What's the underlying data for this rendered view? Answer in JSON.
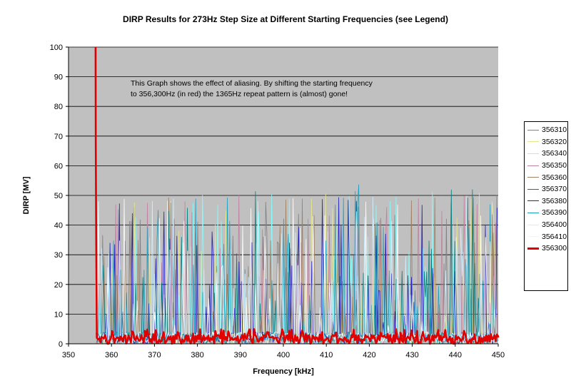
{
  "chart_data": {
    "type": "line",
    "title": "DIRP Results for 273Hz Step Size at Different Starting Frequencies (see Legend)",
    "xlabel": "Frequency [kHz]",
    "ylabel": "DIRP [MV]",
    "xlim": [
      350,
      450
    ],
    "ylim": [
      0,
      100
    ],
    "x_ticks": [
      "350",
      "360",
      "370",
      "380",
      "390",
      "400",
      "410",
      "420",
      "430",
      "440",
      "450"
    ],
    "y_ticks": [
      "0",
      "10",
      "20",
      "30",
      "40",
      "50",
      "60",
      "70",
      "80",
      "90",
      "100"
    ],
    "grid": "horizontal",
    "plot_background": "#c0c0c0",
    "legend_placement": "right",
    "annotation": [
      "This Graph shows the effect of aliasing. By shifting the starting frequency",
      "to 356,300Hz (in red) the 1365Hz repeat pattern is (almost) gone!"
    ],
    "series": [
      {
        "name": "356310",
        "color": "#808080",
        "start_khz": 356.31,
        "step_hz": 273,
        "approx_peak_range": [
          0,
          52
        ]
      },
      {
        "name": "356320",
        "color": "#e6e68c",
        "start_khz": 356.32,
        "step_hz": 273,
        "approx_peak_range": [
          0,
          52
        ]
      },
      {
        "name": "356340",
        "color": "#80ffff",
        "start_khz": 356.34,
        "step_hz": 273,
        "approx_peak_range": [
          0,
          52
        ]
      },
      {
        "name": "356350",
        "color": "#c080a0",
        "start_khz": 356.35,
        "step_hz": 273,
        "approx_peak_range": [
          0,
          50
        ]
      },
      {
        "name": "356360",
        "color": "#a08060",
        "start_khz": 356.36,
        "step_hz": 273,
        "approx_peak_range": [
          0,
          50
        ]
      },
      {
        "name": "356370",
        "color": "#008080",
        "start_khz": 356.37,
        "step_hz": 273,
        "approx_peak_range": [
          0,
          52
        ]
      },
      {
        "name": "356380",
        "color": "#2020c0",
        "start_khz": 356.38,
        "step_hz": 273,
        "approx_peak_range": [
          0,
          50
        ]
      },
      {
        "name": "356390",
        "color": "#20a0c0",
        "start_khz": 356.39,
        "step_hz": 273,
        "approx_peak_range": [
          0,
          55
        ]
      },
      {
        "name": "356400",
        "color": "#d0f0ff",
        "start_khz": 356.4,
        "step_hz": 273,
        "approx_peak_range": [
          0,
          50
        ]
      },
      {
        "name": "356410",
        "color": "#ffffff",
        "start_khz": 356.41,
        "step_hz": 273,
        "approx_peak_range": [
          0,
          50
        ]
      },
      {
        "name": "356300",
        "color": "#e00000",
        "start_khz": 356.3,
        "step_hz": 273,
        "approx_peak_range": [
          0,
          100
        ],
        "initial_values": [
          [
            356.3,
            100
          ],
          [
            356.35,
            67
          ],
          [
            356.45,
            35
          ],
          [
            356.6,
            2
          ]
        ],
        "baseline_range": [
          0,
          5
        ]
      }
    ]
  }
}
